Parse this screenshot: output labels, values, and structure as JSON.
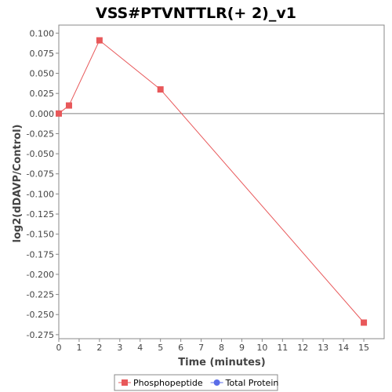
{
  "chart_data": {
    "type": "line",
    "title": "VSS#PTVNTTLR(+ 2)_v1",
    "xlabel": "Time (minutes)",
    "ylabel": "log2(dDAVP/Control)",
    "xlim": [
      0,
      16
    ],
    "ylim": [
      -0.28,
      0.11
    ],
    "x_ticks": [
      0,
      1,
      2,
      3,
      4,
      5,
      6,
      7,
      8,
      9,
      10,
      11,
      12,
      13,
      14,
      15
    ],
    "y_ticks": [
      0.1,
      0.075,
      0.05,
      0.025,
      0.0,
      -0.025,
      -0.05,
      -0.075,
      -0.1,
      -0.125,
      -0.15,
      -0.175,
      -0.2,
      -0.225,
      -0.25,
      -0.275
    ],
    "y_tick_labels": [
      "0.100",
      "0.075",
      "0.050",
      "0.025",
      "0.000",
      "-0.025",
      "-0.050",
      "-0.075",
      "-0.100",
      "-0.125",
      "-0.150",
      "-0.175",
      "-0.200",
      "-0.225",
      "-0.250",
      "-0.275"
    ],
    "zero_line": true,
    "grid": false,
    "legend_position": "bottom",
    "series": [
      {
        "name": "Phosphopeptide",
        "color": "#e8585a",
        "marker": "square",
        "x": [
          0,
          0.5,
          2,
          5,
          15
        ],
        "y": [
          0.0,
          0.01,
          0.091,
          0.03,
          -0.26
        ]
      },
      {
        "name": "Total Protein",
        "color": "#5a6de8",
        "marker": "circle",
        "x": [],
        "y": []
      }
    ]
  }
}
